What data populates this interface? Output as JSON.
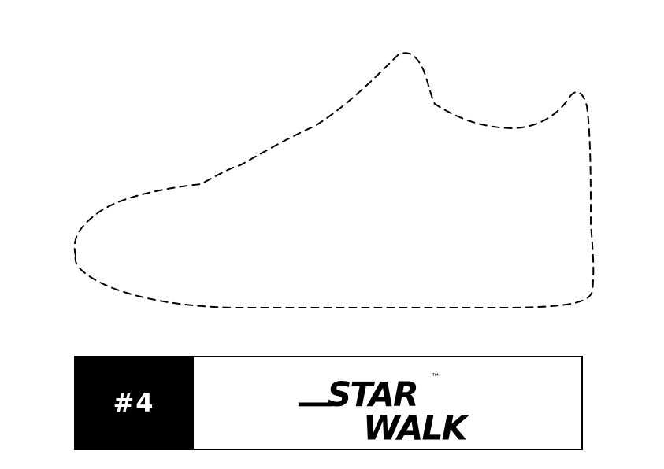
{
  "label": {
    "number": "#4",
    "brand_line1": "STAR",
    "brand_line2": "WALK",
    "trademark": "™"
  },
  "colors": {
    "ink": "#000000",
    "paper": "#ffffff"
  },
  "shoe_outline_style": "dashed"
}
